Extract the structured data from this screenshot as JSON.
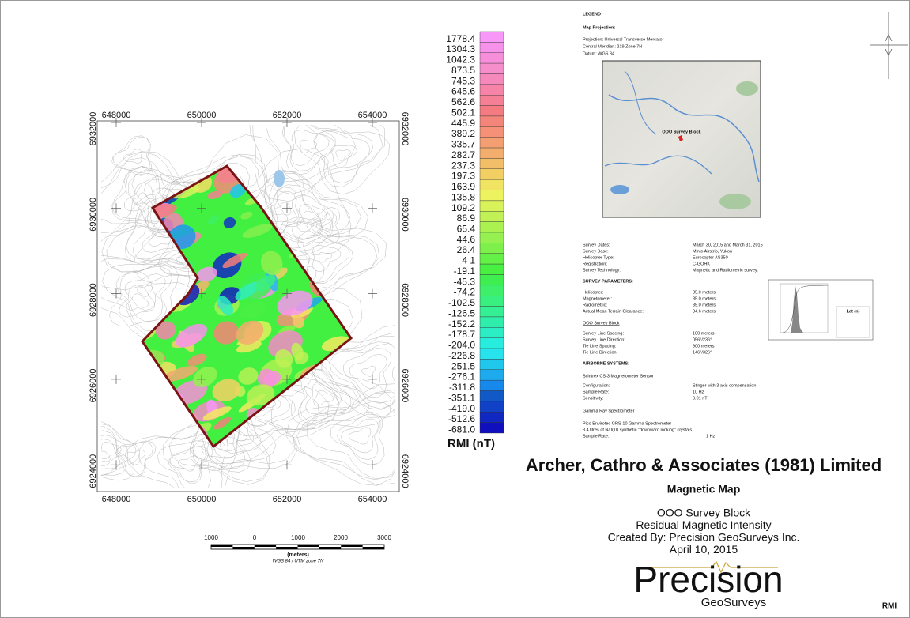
{
  "map": {
    "x_ticks": [
      "648000",
      "650000",
      "652000",
      "654000"
    ],
    "y_ticks": [
      "6932000",
      "6930000",
      "6928000",
      "6926000",
      "6924000"
    ],
    "scale_labels": [
      "1000",
      "0",
      "1000",
      "2000",
      "3000"
    ],
    "scale_unit": "(meters)",
    "projection_note": "WGS 84 / UTM zone 7N"
  },
  "colorbar": {
    "labels": [
      "1778.4",
      "1304.3",
      "1042.3",
      "873.5",
      "745.3",
      "645.6",
      "562.6",
      "502.1",
      "445.9",
      "389.2",
      "335.7",
      "282.7",
      "237.3",
      "197.3",
      "163.9",
      "135.8",
      "109.2",
      "86.9",
      "65.4",
      "44.6",
      "26.4",
      "4 1",
      "-19.1",
      "-45.3",
      "-74.2",
      "-102.5",
      "-126.5",
      "-152.2",
      "-178.7",
      "-204.0",
      "-226.8",
      "-251.5",
      "-276.1",
      "-311.8",
      "-351.1",
      "-419.0",
      "-512.6",
      "-681.0"
    ],
    "title": "RMI (nT)"
  },
  "legend": {
    "title": "LEGEND",
    "projection": {
      "heading": "Map Projection:",
      "lines": [
        "Projection: Universal Transverse Mercator",
        "Central Meridian: 219 Zone 7N",
        "Datum: WGS 84"
      ]
    },
    "inset_label": "OOO Survey Block",
    "survey": [
      [
        "Survey Dates:",
        "March 30, 2015 and March 31, 2015"
      ],
      [
        "Survey Base:",
        "Minto Airstrip, Yukon"
      ],
      [
        "Helicopter Type:",
        "Eurocopter AS350"
      ],
      [
        "Registration:",
        "C-GOHK"
      ],
      [
        "Survey Technology:",
        "Magnetic and Radiometric survey."
      ]
    ],
    "parameters": {
      "heading": "SURVEY PARAMETERS:",
      "rows": [
        [
          "Helicopter:",
          "35.0 meters"
        ],
        [
          "Magnetometer:",
          "35.0 meters"
        ],
        [
          "Radiometric:",
          "35.0 meters"
        ],
        [
          "Actual Mean Terrain Clearance:",
          "34.6 meters"
        ]
      ]
    },
    "block": {
      "heading": "OOO Survey Block",
      "rows": [
        [
          "Survey Line Spacing:",
          "100 meters"
        ],
        [
          "Survey Line Direction:",
          "056°/236°"
        ],
        [
          "Tie Line Spacing:",
          "900 meters"
        ],
        [
          "Tie Line Direction:",
          "146°/326°"
        ]
      ]
    },
    "airborne": {
      "heading": "AIRBORNE SYSTEMS:",
      "magnetometer": "Scintrex CS-3 Magnetometer Sensor",
      "mag_rows": [
        [
          "Configuration:",
          "Stinger with 3 axis compensation"
        ],
        [
          "Sample Rate:",
          "10 Hz"
        ],
        [
          "Sensitivity:",
          "0.01 nT"
        ]
      ],
      "spectrometer": "Gamma Ray Spectrometer",
      "spec_lines": [
        "Pico Envirotec GRS-10 Gamma Spectrometer",
        "8.4 litres of NaI(Tl) synthetic \"downward looking\" crystals"
      ],
      "spec_rows": [
        [
          "Sample Rate:",
          "1 Hz"
        ]
      ]
    },
    "histogram_title": "Lat (n)"
  },
  "title_block": {
    "company": "Archer, Cathro & Associates (1981) Limited",
    "map_type": "Magnetic Map",
    "lines": [
      "OOO Survey Block",
      "Residual Magnetic Intensity",
      "Created By: Precision GeoSurveys Inc.",
      "April 10, 2015"
    ],
    "logo_main": "Precision",
    "logo_sub": "GeoSurveys"
  },
  "footer": "RMI"
}
